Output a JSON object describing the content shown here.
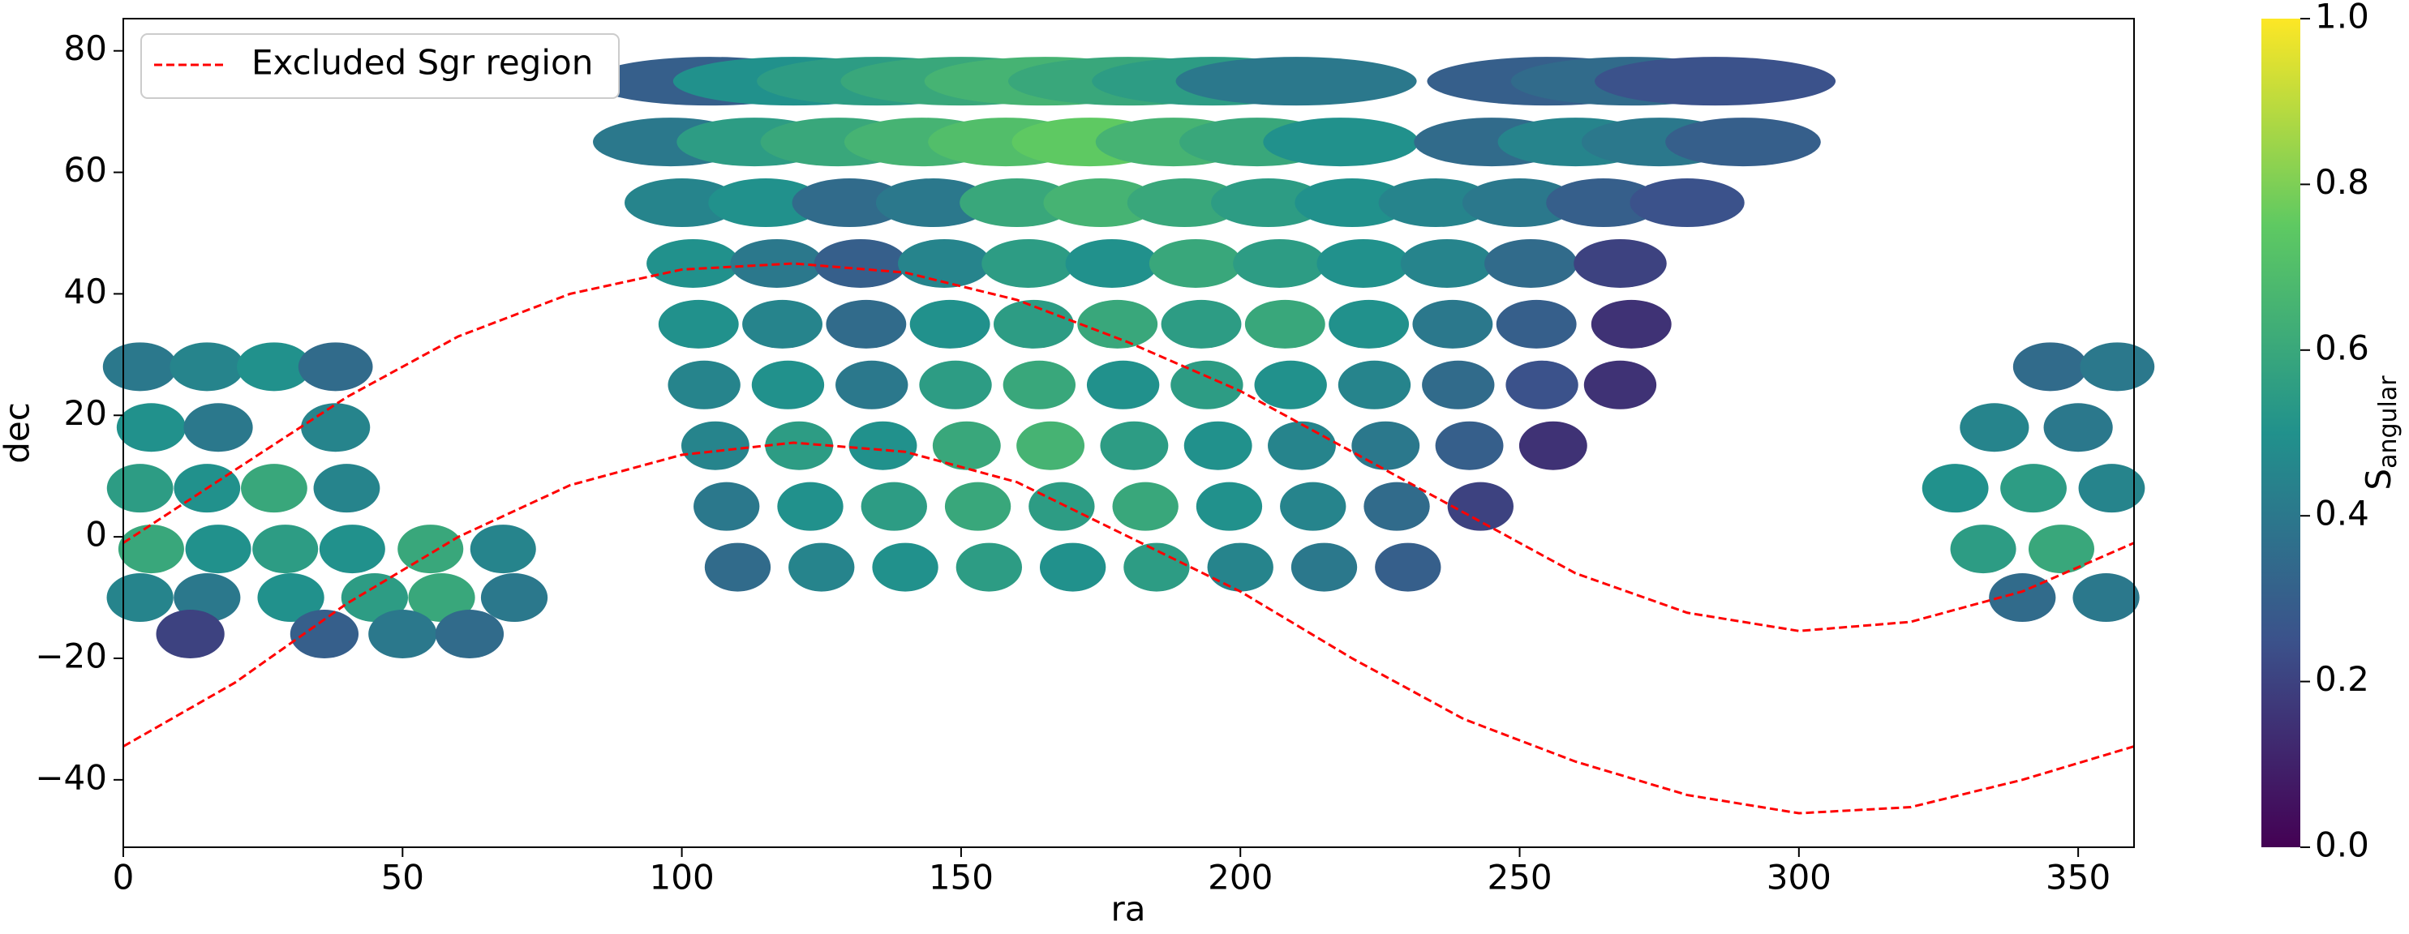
{
  "chart_data": {
    "type": "scatter",
    "xlabel": "ra",
    "ylabel": "dec",
    "xlim": [
      0,
      360
    ],
    "ylim": [
      -51.1,
      85.3
    ],
    "xticks": [
      0,
      50,
      100,
      150,
      200,
      250,
      300,
      350
    ],
    "yticks": [
      {
        "value": -40,
        "label": "−40"
      },
      {
        "value": -20,
        "label": "−20"
      },
      0,
      20,
      40,
      60,
      80
    ],
    "x": [
      110,
      125,
      140,
      155,
      170,
      185,
      200,
      215,
      230,
      108,
      123,
      138,
      153,
      168,
      183,
      198,
      213,
      228,
      243,
      106,
      121,
      136,
      151,
      166,
      181,
      196,
      211,
      226,
      241,
      256,
      104,
      119,
      134,
      149,
      164,
      179,
      194,
      209,
      224,
      239,
      254,
      268,
      103,
      118,
      133,
      148,
      163,
      178,
      193,
      208,
      223,
      238,
      253,
      270,
      102,
      117,
      132,
      147,
      162,
      177,
      192,
      207,
      222,
      237,
      252,
      268,
      100,
      115,
      130,
      145,
      160,
      175,
      190,
      205,
      220,
      235,
      250,
      265,
      280,
      98,
      113,
      128,
      143,
      158,
      173,
      188,
      203,
      218,
      245,
      260,
      275,
      290,
      105,
      120,
      135,
      150,
      165,
      180,
      195,
      210,
      255,
      270,
      285,
      3,
      15,
      27,
      38,
      5,
      17,
      38,
      3,
      15,
      27,
      40,
      5,
      17,
      29,
      41,
      55,
      68,
      3,
      15,
      30,
      45,
      57,
      70,
      12,
      36,
      50,
      62,
      345,
      357,
      335,
      350,
      328,
      342,
      356,
      333,
      347,
      340,
      355
    ],
    "y": [
      -5,
      -5,
      -5,
      -5,
      -5,
      -5,
      -5,
      -5,
      -5,
      5,
      5,
      5,
      5,
      5,
      5,
      5,
      5,
      5,
      5,
      15,
      15,
      15,
      15,
      15,
      15,
      15,
      15,
      15,
      15,
      15,
      25,
      25,
      25,
      25,
      25,
      25,
      25,
      25,
      25,
      25,
      25,
      25,
      35,
      35,
      35,
      35,
      35,
      35,
      35,
      35,
      35,
      35,
      35,
      35,
      45,
      45,
      45,
      45,
      45,
      45,
      45,
      45,
      45,
      45,
      45,
      45,
      55,
      55,
      55,
      55,
      55,
      55,
      55,
      55,
      55,
      55,
      55,
      55,
      55,
      65,
      65,
      65,
      65,
      65,
      65,
      65,
      65,
      65,
      65,
      65,
      65,
      65,
      75,
      75,
      75,
      75,
      75,
      75,
      75,
      75,
      75,
      75,
      75,
      28,
      28,
      28,
      28,
      18,
      18,
      18,
      8,
      8,
      8,
      8,
      -2,
      -2,
      -2,
      -2,
      -2,
      -2,
      -10,
      -10,
      -10,
      -10,
      -10,
      -10,
      -16,
      -16,
      -16,
      -16,
      28,
      28,
      18,
      18,
      8,
      8,
      8,
      -2,
      -2,
      -10,
      -10
    ],
    "c": [
      0.35,
      0.45,
      0.5,
      0.55,
      0.5,
      0.55,
      0.45,
      0.4,
      0.3,
      0.4,
      0.5,
      0.55,
      0.6,
      0.55,
      0.6,
      0.5,
      0.45,
      0.35,
      0.2,
      0.45,
      0.55,
      0.5,
      0.6,
      0.65,
      0.55,
      0.5,
      0.45,
      0.4,
      0.3,
      0.15,
      0.45,
      0.5,
      0.4,
      0.55,
      0.6,
      0.5,
      0.55,
      0.5,
      0.45,
      0.35,
      0.25,
      0.15,
      0.5,
      0.45,
      0.35,
      0.5,
      0.55,
      0.6,
      0.55,
      0.6,
      0.5,
      0.4,
      0.3,
      0.15,
      0.5,
      0.4,
      0.3,
      0.45,
      0.55,
      0.5,
      0.6,
      0.55,
      0.5,
      0.45,
      0.35,
      0.2,
      0.45,
      0.5,
      0.35,
      0.4,
      0.6,
      0.65,
      0.6,
      0.55,
      0.5,
      0.45,
      0.4,
      0.3,
      0.25,
      0.4,
      0.55,
      0.6,
      0.65,
      0.7,
      0.75,
      0.65,
      0.6,
      0.5,
      0.35,
      0.45,
      0.4,
      0.3,
      0.3,
      0.5,
      0.55,
      0.6,
      0.65,
      0.6,
      0.55,
      0.4,
      0.3,
      0.35,
      0.25,
      0.4,
      0.45,
      0.5,
      0.35,
      0.5,
      0.4,
      0.45,
      0.55,
      0.5,
      0.6,
      0.45,
      0.6,
      0.5,
      0.55,
      0.5,
      0.6,
      0.45,
      0.45,
      0.4,
      0.5,
      0.55,
      0.6,
      0.4,
      0.2,
      0.3,
      0.4,
      0.35,
      0.35,
      0.4,
      0.45,
      0.4,
      0.5,
      0.55,
      0.45,
      0.55,
      0.6,
      0.35,
      0.4
    ],
    "colormap": [
      "#440154",
      "#3b528b",
      "#21918c",
      "#5ec962",
      "#fde725"
    ],
    "clim": [
      0,
      1
    ],
    "colorbar_ticks": [
      {
        "value": 0,
        "label": "0.0"
      },
      0.2,
      0.4,
      0.6,
      0.8,
      {
        "value": 1,
        "label": "1.0"
      }
    ],
    "colorbar_label": "S",
    "colorbar_label_sub": "angular",
    "lines": {
      "name": "Excluded Sgr region",
      "color": "#ff0000",
      "x": [
        0,
        20,
        40,
        60,
        80,
        100,
        120,
        140,
        160,
        180,
        200,
        220,
        240,
        260,
        280,
        300,
        320,
        340,
        360
      ],
      "upper": [
        -1,
        11,
        23,
        33,
        40,
        44,
        45,
        43.5,
        39,
        32,
        24,
        14,
        4,
        -6,
        -12.5,
        -15.5,
        -14,
        -9,
        -1
      ],
      "lower": [
        -34.5,
        -24,
        -11,
        0,
        8.5,
        13.5,
        15.5,
        14,
        9,
        0,
        -9,
        -20,
        -30,
        -37,
        -42.5,
        -45.5,
        -44.5,
        -40,
        -34.5
      ]
    },
    "legend_loc": "upper left"
  }
}
